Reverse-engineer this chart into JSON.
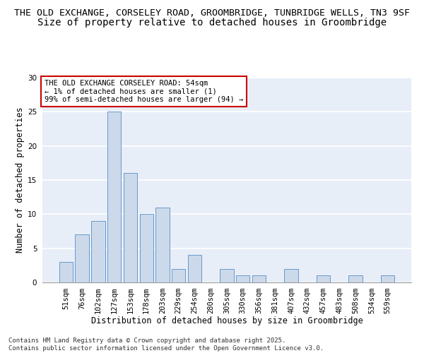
{
  "title1": "THE OLD EXCHANGE, CORSELEY ROAD, GROOMBRIDGE, TUNBRIDGE WELLS, TN3 9SF",
  "title2": "Size of property relative to detached houses in Groombridge",
  "xlabel": "Distribution of detached houses by size in Groombridge",
  "ylabel": "Number of detached properties",
  "categories": [
    "51sqm",
    "76sqm",
    "102sqm",
    "127sqm",
    "153sqm",
    "178sqm",
    "203sqm",
    "229sqm",
    "254sqm",
    "280sqm",
    "305sqm",
    "330sqm",
    "356sqm",
    "381sqm",
    "407sqm",
    "432sqm",
    "457sqm",
    "483sqm",
    "508sqm",
    "534sqm",
    "559sqm"
  ],
  "values": [
    3,
    7,
    9,
    25,
    16,
    10,
    11,
    2,
    4,
    0,
    2,
    1,
    1,
    0,
    2,
    0,
    1,
    0,
    1,
    0,
    1
  ],
  "bar_color": "#ccd9ea",
  "bar_edge_color": "#6699cc",
  "box_edge_color": "#cc0000",
  "ylim": [
    0,
    30
  ],
  "yticks": [
    0,
    5,
    10,
    15,
    20,
    25,
    30
  ],
  "annotation_box_text": "THE OLD EXCHANGE CORSELEY ROAD: 54sqm\n← 1% of detached houses are smaller (1)\n99% of semi-detached houses are larger (94) →",
  "footnote": "Contains HM Land Registry data © Crown copyright and database right 2025.\nContains public sector information licensed under the Open Government Licence v3.0.",
  "background_color": "#e8eef8",
  "grid_color": "#ffffff",
  "title1_fontsize": 9.5,
  "title2_fontsize": 10,
  "axis_label_fontsize": 8.5,
  "tick_fontsize": 7.5,
  "annotation_fontsize": 7.5,
  "footnote_fontsize": 6.5
}
